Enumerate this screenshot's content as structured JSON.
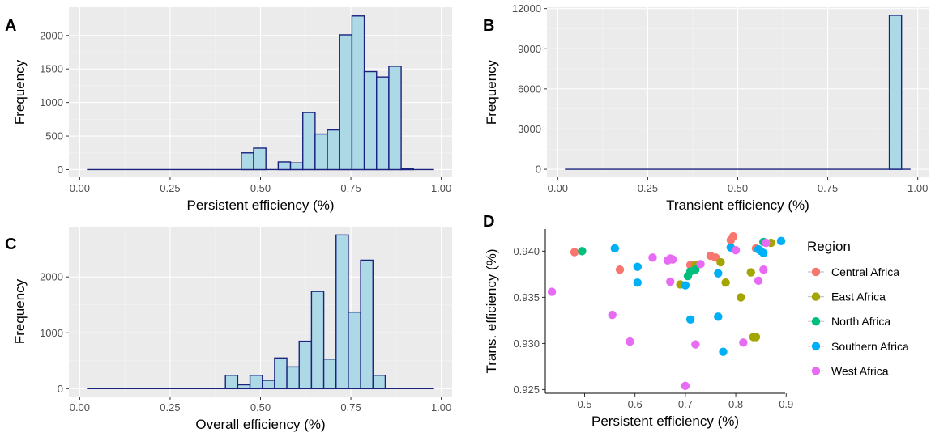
{
  "chart_data": [
    {
      "id": "A",
      "panel_label": "A",
      "type": "bar",
      "subtype": "histogram",
      "xlabel": "Persistent efficiency (%)",
      "ylabel": "Frequency",
      "xlim": [
        -0.03,
        1.03
      ],
      "ylim": [
        -115,
        2420
      ],
      "xticks": [
        0.0,
        0.25,
        0.5,
        0.75,
        1.0
      ],
      "xtick_labels": [
        "0.00",
        "0.25",
        "0.50",
        "0.75",
        "1.00"
      ],
      "yticks": [
        0,
        500,
        1000,
        1500,
        2000
      ],
      "ytick_labels": [
        "0",
        "500",
        "1000",
        "1500",
        "2000"
      ],
      "baseline_range": [
        0.02,
        0.98
      ],
      "bin_width": 0.034,
      "bins": [
        {
          "x": 0.464,
          "value": 250
        },
        {
          "x": 0.498,
          "value": 320
        },
        {
          "x": 0.566,
          "value": 115
        },
        {
          "x": 0.6,
          "value": 100
        },
        {
          "x": 0.634,
          "value": 850
        },
        {
          "x": 0.668,
          "value": 530
        },
        {
          "x": 0.702,
          "value": 590
        },
        {
          "x": 0.736,
          "value": 2010
        },
        {
          "x": 0.77,
          "value": 2290
        },
        {
          "x": 0.804,
          "value": 1460
        },
        {
          "x": 0.838,
          "value": 1380
        },
        {
          "x": 0.872,
          "value": 1540
        },
        {
          "x": 0.906,
          "value": 15
        }
      ]
    },
    {
      "id": "B",
      "panel_label": "B",
      "type": "bar",
      "subtype": "histogram",
      "xlabel": "Transient efficiency (%)",
      "ylabel": "Frequency",
      "xlim": [
        -0.03,
        1.03
      ],
      "ylim": [
        -600,
        12100
      ],
      "xticks": [
        0.0,
        0.25,
        0.5,
        0.75,
        1.0
      ],
      "xtick_labels": [
        "0.00",
        "0.25",
        "0.50",
        "0.75",
        "1.00"
      ],
      "yticks": [
        0,
        3000,
        6000,
        9000,
        12000
      ],
      "ytick_labels": [
        "0",
        "3000",
        "6000",
        "9000",
        "12000"
      ],
      "baseline_range": [
        0.02,
        0.98
      ],
      "bin_width": 0.034,
      "bins": [
        {
          "x": 0.938,
          "value": 11500
        }
      ]
    },
    {
      "id": "C",
      "panel_label": "C",
      "type": "bar",
      "subtype": "histogram",
      "xlabel": "Overall efficiency (%)",
      "ylabel": "Frequency",
      "xlim": [
        -0.03,
        1.03
      ],
      "ylim": [
        -140,
        2900
      ],
      "xticks": [
        0.0,
        0.25,
        0.5,
        0.75,
        1.0
      ],
      "xtick_labels": [
        "0.00",
        "0.25",
        "0.50",
        "0.75",
        "1.00"
      ],
      "yticks": [
        0,
        1000,
        2000
      ],
      "ytick_labels": [
        "0",
        "1000",
        "2000"
      ],
      "baseline_range": [
        0.02,
        0.98
      ],
      "bin_width": 0.034,
      "bins": [
        {
          "x": 0.42,
          "value": 240
        },
        {
          "x": 0.454,
          "value": 70
        },
        {
          "x": 0.488,
          "value": 240
        },
        {
          "x": 0.522,
          "value": 150
        },
        {
          "x": 0.556,
          "value": 550
        },
        {
          "x": 0.59,
          "value": 390
        },
        {
          "x": 0.624,
          "value": 850
        },
        {
          "x": 0.658,
          "value": 1740
        },
        {
          "x": 0.692,
          "value": 530
        },
        {
          "x": 0.726,
          "value": 2750
        },
        {
          "x": 0.76,
          "value": 1370
        },
        {
          "x": 0.794,
          "value": 2300
        },
        {
          "x": 0.828,
          "value": 240
        }
      ]
    },
    {
      "id": "D",
      "panel_label": "D",
      "type": "scatter",
      "xlabel": "Persistent efficiency (%)",
      "ylabel": "Trans. efficiency (%)",
      "xlim": [
        0.422,
        0.898
      ],
      "ylim": [
        0.9246,
        0.9424
      ],
      "xticks": [
        0.5,
        0.6,
        0.7,
        0.8,
        0.9
      ],
      "xtick_labels": [
        "0.5",
        "0.6",
        "0.7",
        "0.8",
        "0.9"
      ],
      "yticks": [
        0.925,
        0.93,
        0.935,
        0.94
      ],
      "ytick_labels": [
        "0.925",
        "0.930",
        "0.935",
        "0.940"
      ],
      "legend": {
        "title": "Region",
        "position": "right",
        "entries": [
          {
            "name": "Central Africa",
            "color": "#F8766D"
          },
          {
            "name": "East Africa",
            "color": "#A3A500"
          },
          {
            "name": "North Africa",
            "color": "#00BF7D"
          },
          {
            "name": "Southern Africa",
            "color": "#00B0F6"
          },
          {
            "name": "West Africa",
            "color": "#E76BF3"
          }
        ]
      },
      "series": [
        {
          "name": "Central Africa",
          "color": "#F8766D",
          "points": [
            [
              0.48,
              0.9399
            ],
            [
              0.57,
              0.938
            ],
            [
              0.71,
              0.9385
            ],
            [
              0.75,
              0.9395
            ],
            [
              0.76,
              0.9393
            ],
            [
              0.795,
              0.9416
            ],
            [
              0.79,
              0.9412
            ],
            [
              0.84,
              0.9403
            ]
          ]
        },
        {
          "name": "East Africa",
          "color": "#A3A500",
          "points": [
            [
              0.69,
              0.9364
            ],
            [
              0.72,
              0.9385
            ],
            [
              0.77,
              0.9388
            ],
            [
              0.78,
              0.9366
            ],
            [
              0.81,
              0.935
            ],
            [
              0.83,
              0.9377
            ],
            [
              0.835,
              0.9307
            ],
            [
              0.84,
              0.9307
            ],
            [
              0.87,
              0.9409
            ]
          ]
        },
        {
          "name": "North Africa",
          "color": "#00BF7D",
          "points": [
            [
              0.495,
              0.94
            ],
            [
              0.705,
              0.9373
            ],
            [
              0.71,
              0.9378
            ],
            [
              0.72,
              0.938
            ],
            [
              0.855,
              0.941
            ]
          ]
        },
        {
          "name": "Southern Africa",
          "color": "#00B0F6",
          "points": [
            [
              0.56,
              0.9403
            ],
            [
              0.605,
              0.9383
            ],
            [
              0.605,
              0.9366
            ],
            [
              0.7,
              0.9363
            ],
            [
              0.71,
              0.9326
            ],
            [
              0.765,
              0.9376
            ],
            [
              0.765,
              0.9329
            ],
            [
              0.775,
              0.9291
            ],
            [
              0.79,
              0.9404
            ],
            [
              0.845,
              0.9402
            ],
            [
              0.85,
              0.94
            ],
            [
              0.855,
              0.9398
            ],
            [
              0.89,
              0.9411
            ]
          ]
        },
        {
          "name": "West Africa",
          "color": "#E76BF3",
          "points": [
            [
              0.435,
              0.9356
            ],
            [
              0.555,
              0.9331
            ],
            [
              0.59,
              0.9302
            ],
            [
              0.635,
              0.9393
            ],
            [
              0.665,
              0.939
            ],
            [
              0.67,
              0.9392
            ],
            [
              0.675,
              0.9391
            ],
            [
              0.67,
              0.9367
            ],
            [
              0.7,
              0.9254
            ],
            [
              0.72,
              0.9299
            ],
            [
              0.73,
              0.9386
            ],
            [
              0.8,
              0.9401
            ],
            [
              0.815,
              0.9301
            ],
            [
              0.845,
              0.9368
            ],
            [
              0.855,
              0.938
            ],
            [
              0.86,
              0.9409
            ]
          ]
        }
      ]
    }
  ]
}
